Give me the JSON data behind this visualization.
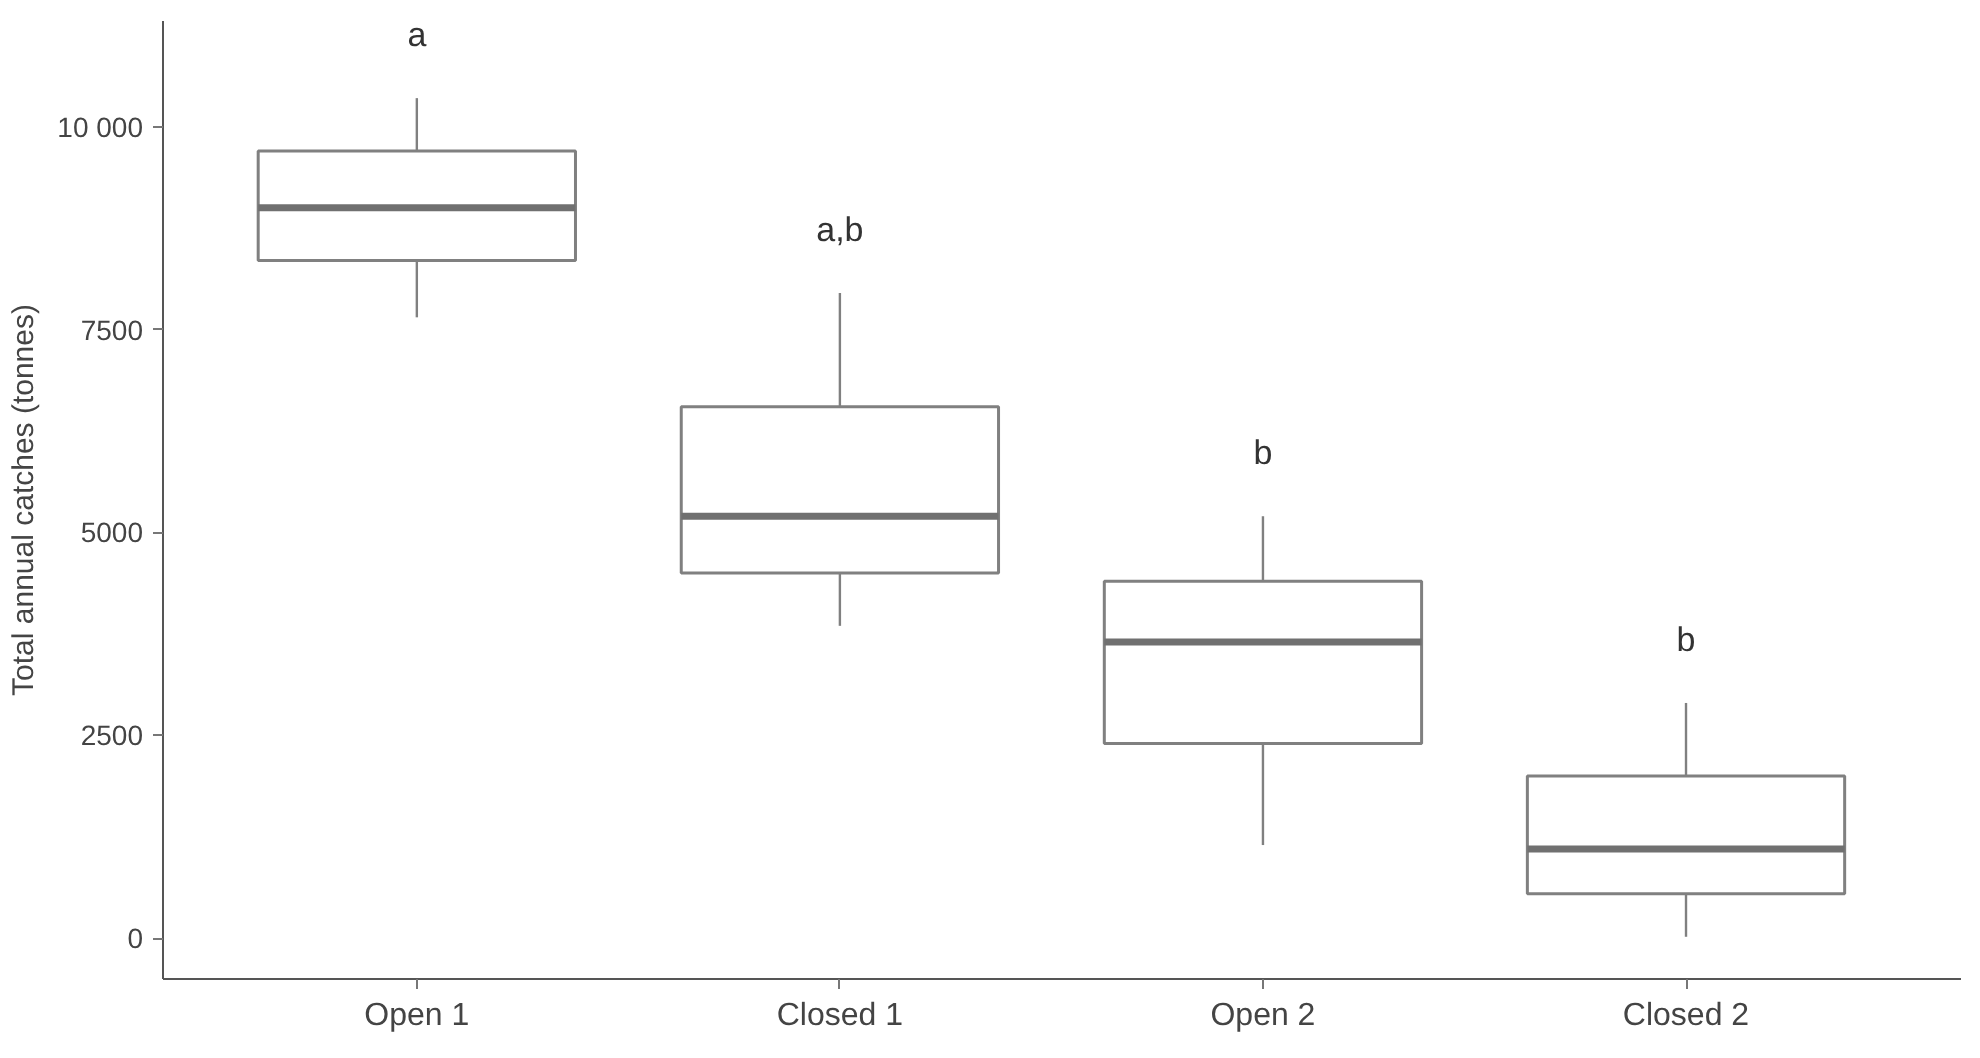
{
  "chart_data": {
    "type": "box",
    "ylabel": "Total annual catches (tonnes)",
    "categories": [
      "Open 1",
      "Closed 1",
      "Open 2",
      "Closed 2"
    ],
    "boxes": [
      {
        "low": 7650,
        "q1": 8350,
        "median": 9000,
        "q3": 9700,
        "high": 10350
      },
      {
        "low": 3850,
        "q1": 4500,
        "median": 5200,
        "q3": 6550,
        "high": 7950
      },
      {
        "low": 1150,
        "q1": 2400,
        "median": 3650,
        "q3": 4400,
        "high": 5200
      },
      {
        "low": 20,
        "q1": 550,
        "median": 1100,
        "q3": 2000,
        "high": 2900
      }
    ],
    "color": "#808080",
    "ylim": [
      -500,
      11300
    ],
    "yticks": [
      0,
      2500,
      5000,
      7500,
      {
        "value": 10000,
        "label": "10 000"
      }
    ],
    "grid": false,
    "annotations": [
      "a",
      "a,b",
      "b",
      "b"
    ]
  }
}
